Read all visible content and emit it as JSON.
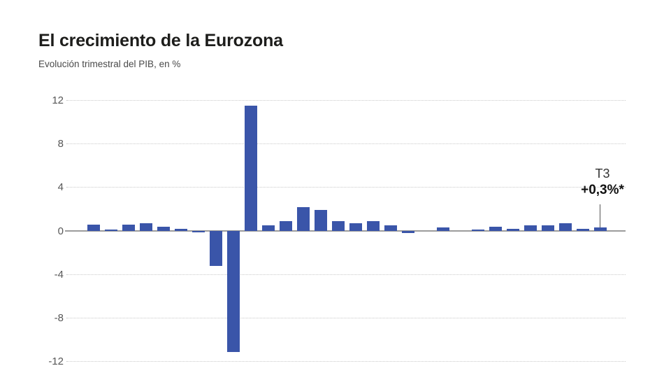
{
  "header": {
    "title": "El crecimiento de la Eurozona",
    "subtitle": "Evolución trimestral del PIB, en %"
  },
  "chart_data": {
    "type": "bar",
    "title": "El crecimiento de la Eurozona",
    "subtitle": "Evolución trimestral del PIB, en %",
    "unit": "%",
    "ylabel": "",
    "ylim": [
      -12,
      12
    ],
    "y_ticks": [
      12,
      8,
      4,
      0,
      -4,
      -8,
      -12
    ],
    "x_tick_labels": [],
    "grid": "horizontal dotted gridlines, solid zero axis",
    "legend": "none",
    "values": [
      0.6,
      0.1,
      0.6,
      0.7,
      0.4,
      0.2,
      -0.1,
      -3.2,
      -11.1,
      11.5,
      0.5,
      0.9,
      2.2,
      1.9,
      0.9,
      0.7,
      0.9,
      0.5,
      -0.2,
      0,
      0.3,
      0,
      0.1,
      0.4,
      0.2,
      0.5,
      0.5,
      0.7,
      0.2,
      0.3
    ],
    "annotation": {
      "label": "T3",
      "value_label": "+0,3%*",
      "applies_to": "last bar"
    },
    "colors": {
      "bar": "#3a55a9",
      "gridline": "#c9c9c9",
      "zero_line": "#9c9c9c",
      "tick_label": "#575757",
      "title": "#1d1d1b",
      "subtitle": "#4a4a4a",
      "annotation_text": "#111111"
    }
  }
}
